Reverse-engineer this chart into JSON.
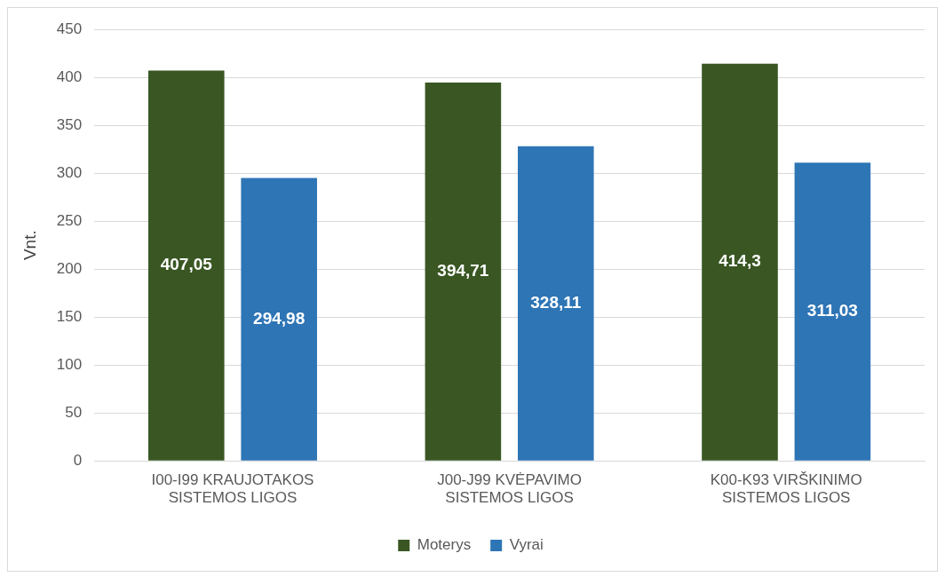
{
  "chart_data": {
    "type": "bar",
    "ylabel": "Vnt.",
    "categories": [
      "I00-I99 KRAUJOTAKOS SISTEMOS LIGOS",
      "J00-J99 KVĖPAVIMO SISTEMOS LIGOS",
      "K00-K93 VIRŠKINIMO SISTEMOS LIGOS"
    ],
    "series": [
      {
        "name": "Moterys",
        "color": "#3a5723",
        "values": [
          407.05,
          394.71,
          414.3
        ],
        "value_labels": [
          "407,05",
          "394,71",
          "414,3"
        ]
      },
      {
        "name": "Vyrai",
        "color": "#2e75b6",
        "values": [
          294.98,
          328.11,
          311.03
        ],
        "value_labels": [
          "294,98",
          "328,11",
          "311,03"
        ]
      }
    ],
    "ylim": [
      0,
      450
    ],
    "yticks": [
      0,
      50,
      100,
      150,
      200,
      250,
      300,
      350,
      400,
      450
    ],
    "grid": "y",
    "legend": "bottom"
  }
}
